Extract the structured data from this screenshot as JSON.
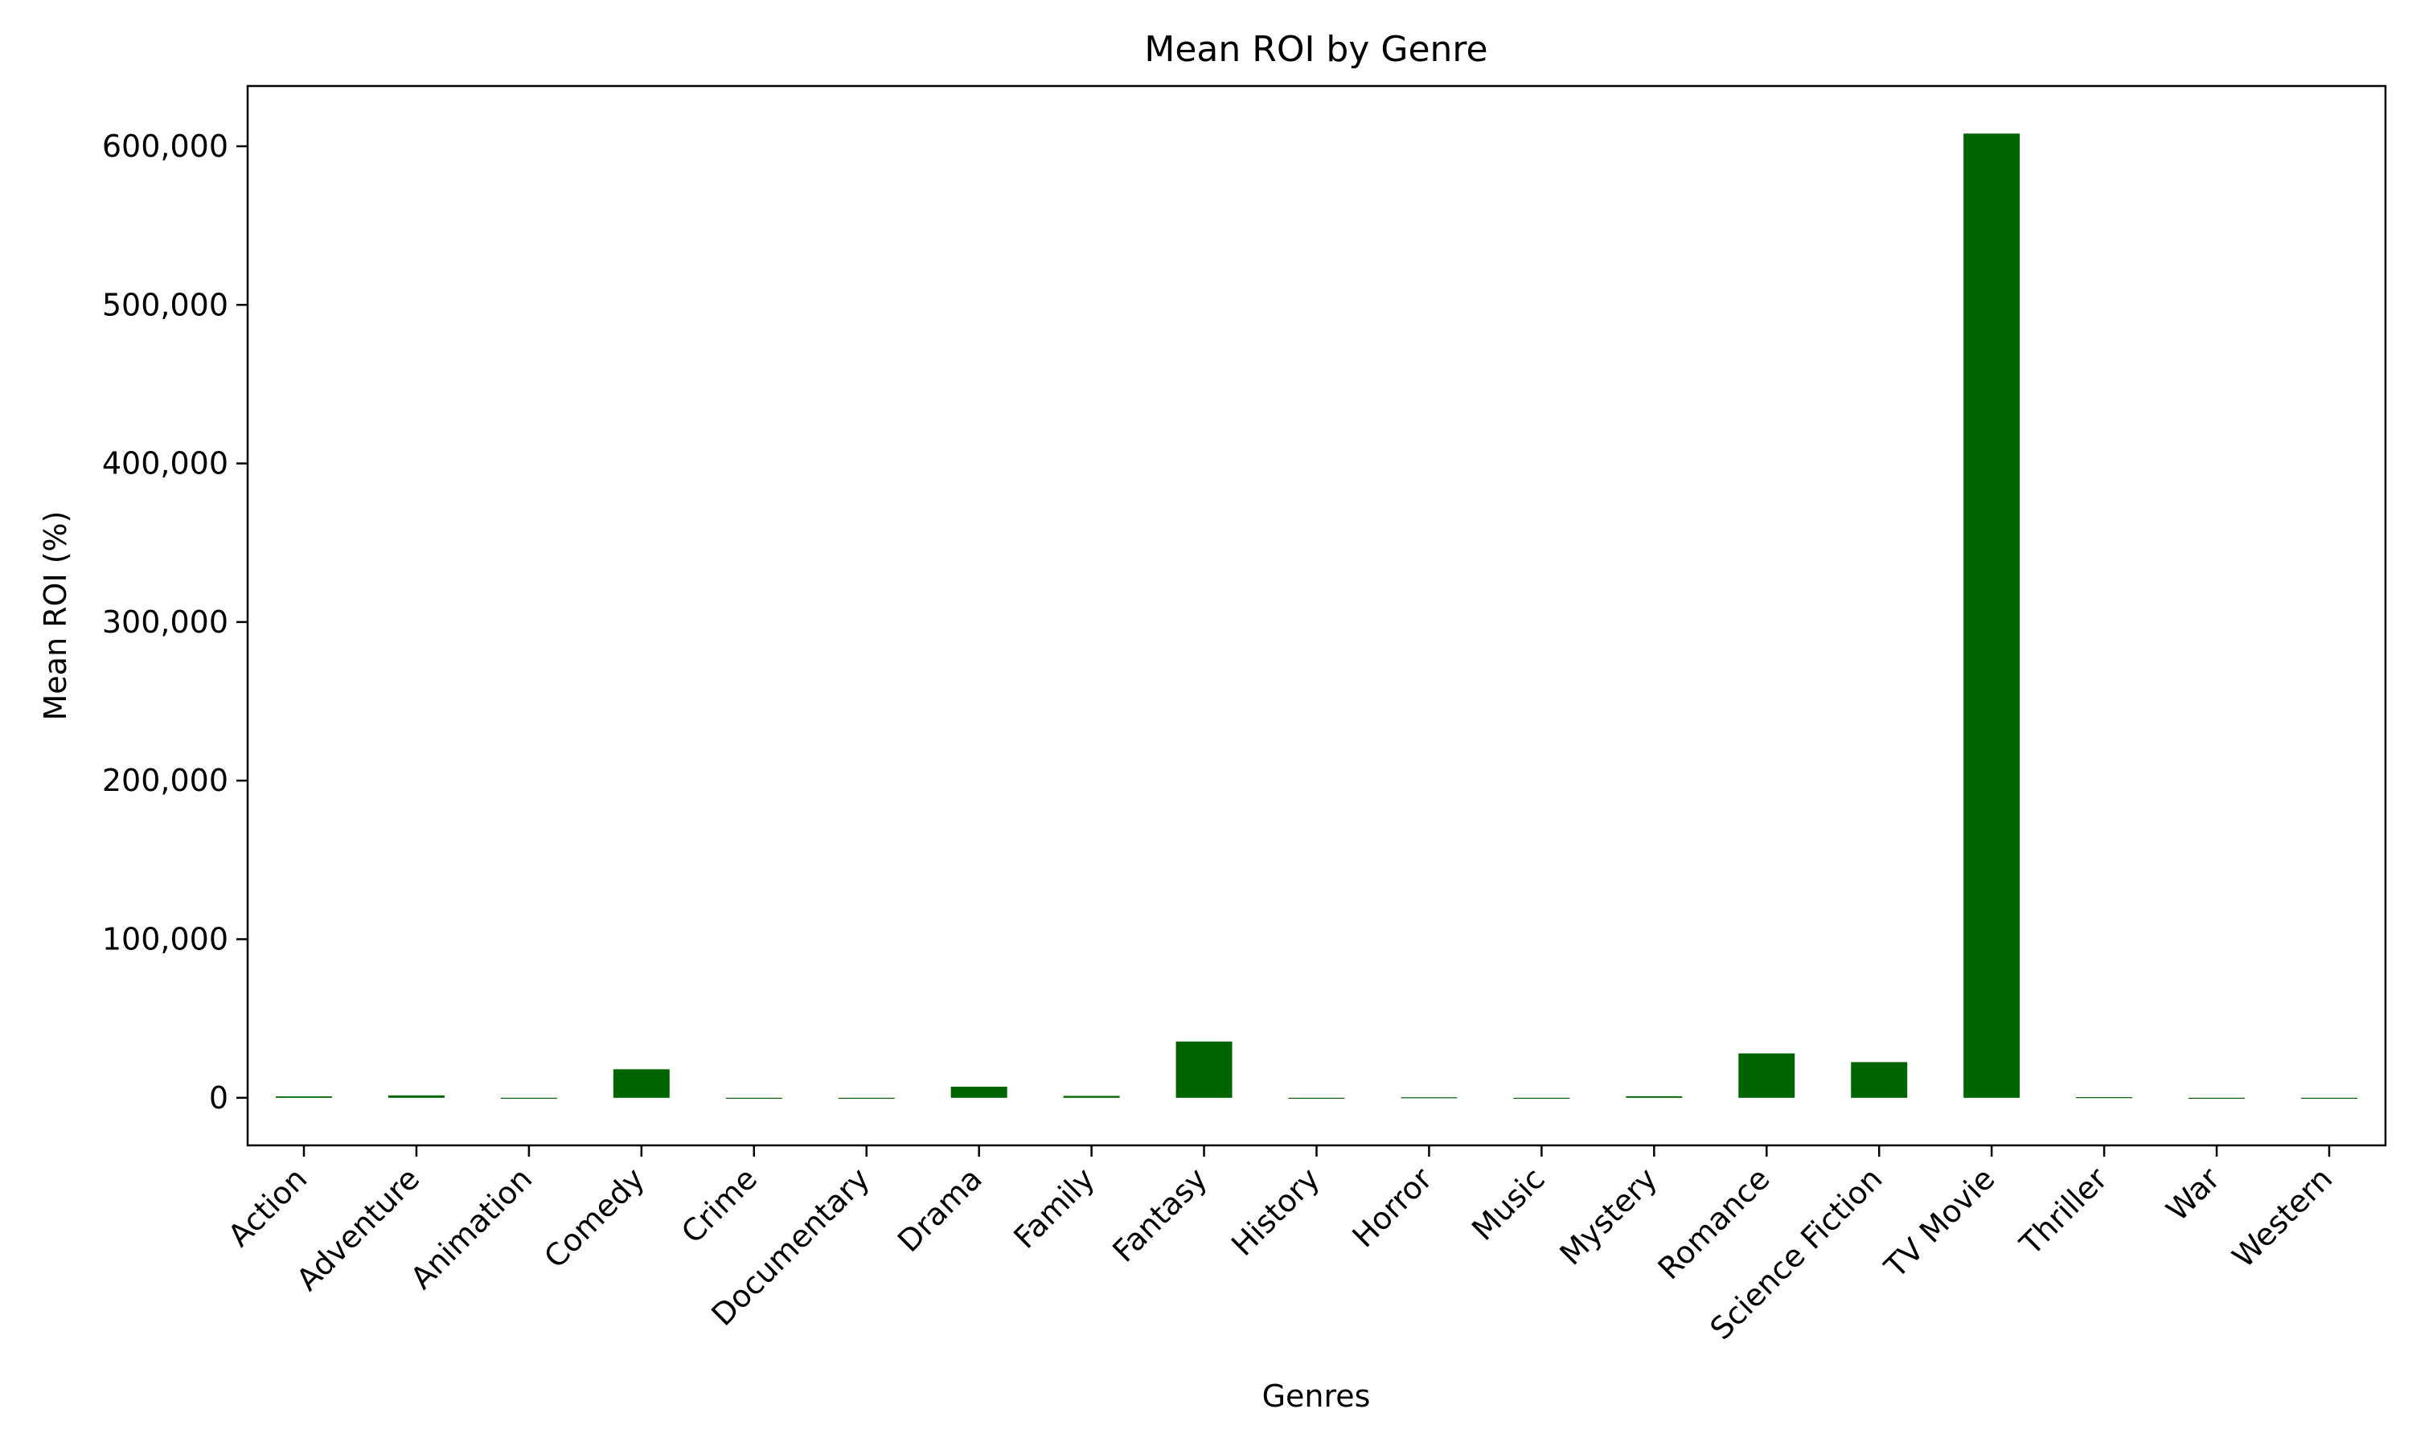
{
  "chart_data": {
    "type": "bar",
    "title": "Mean ROI by Genre",
    "xlabel": "Genres",
    "ylabel": "Mean ROI (%)",
    "categories": [
      "Action",
      "Adventure",
      "Animation",
      "Comedy",
      "Crime",
      "Documentary",
      "Drama",
      "Family",
      "Fantasy",
      "History",
      "Horror",
      "Music",
      "Mystery",
      "Romance",
      "Science Fiction",
      "TV Movie",
      "Thriller",
      "War",
      "Western"
    ],
    "values": [
      900,
      1500,
      0,
      18000,
      0,
      0,
      7000,
      1200,
      35500,
      0,
      300,
      0,
      1000,
      28000,
      22500,
      608000,
      400,
      0,
      0
    ],
    "ylim": [
      -30000,
      638000
    ],
    "yticks": [
      0,
      100000,
      200000,
      300000,
      400000,
      500000,
      600000
    ],
    "ytick_labels": [
      "0",
      "100,000",
      "200,000",
      "300,000",
      "400,000",
      "500,000",
      "600,000"
    ],
    "grid": false,
    "bar_color": "#006400"
  }
}
